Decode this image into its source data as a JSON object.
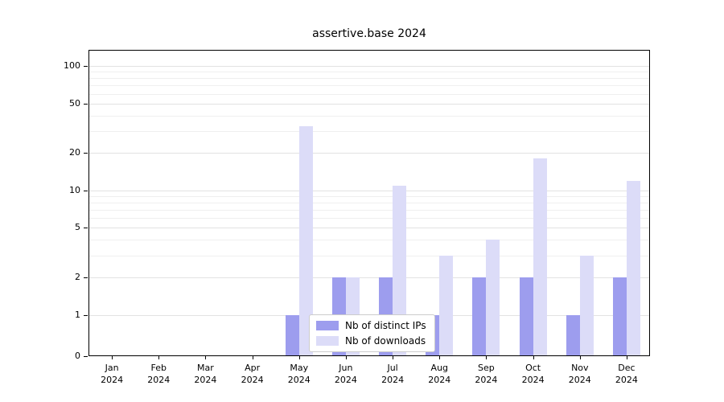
{
  "title": "assertive.base 2024",
  "chart_data": {
    "type": "bar",
    "title": "assertive.base 2024",
    "months": [
      "Jan",
      "Feb",
      "Mar",
      "Apr",
      "May",
      "Jun",
      "Jul",
      "Aug",
      "Sep",
      "Oct",
      "Nov",
      "Dec"
    ],
    "year": "2024",
    "categories": [
      "Jan 2024",
      "Feb 2024",
      "Mar 2024",
      "Apr 2024",
      "May 2024",
      "Jun 2024",
      "Jul 2024",
      "Aug 2024",
      "Sep 2024",
      "Oct 2024",
      "Nov 2024",
      "Dec 2024"
    ],
    "series": [
      {
        "name": "Nb of distinct IPs",
        "color": "#9d9dee",
        "values": [
          0,
          0,
          0,
          0,
          1,
          2,
          2,
          1,
          2,
          2,
          1,
          2
        ]
      },
      {
        "name": "Nb of downloads",
        "color": "#dcdcf8",
        "values": [
          0,
          0,
          0,
          0,
          33,
          2,
          11,
          3,
          4,
          18,
          3,
          12
        ]
      }
    ],
    "yticks": [
      0,
      1,
      2,
      5,
      10,
      20,
      50,
      100
    ],
    "y_minor_ticks": [
      3,
      4,
      6,
      7,
      8,
      9,
      30,
      40,
      60,
      70,
      80,
      90
    ],
    "scale": "symlog",
    "ylim": [
      0,
      135
    ],
    "grid": true,
    "legend_position": "inside-bottom-center"
  }
}
